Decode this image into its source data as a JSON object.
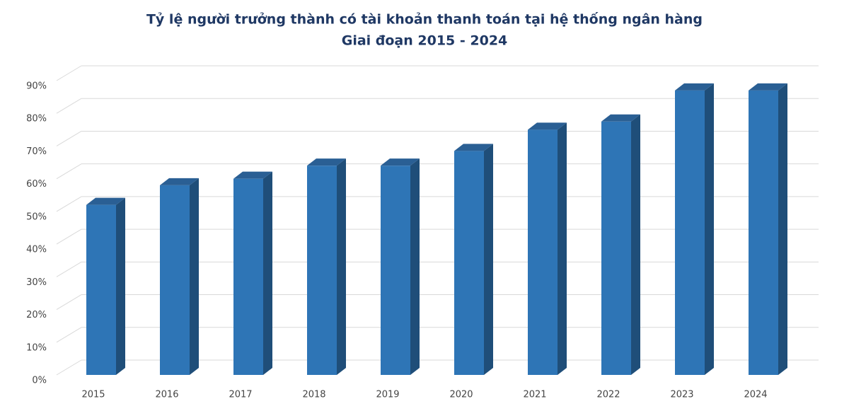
{
  "chart_data": {
    "type": "bar3d",
    "title": "Tỷ lệ người trưởng thành có tài khoản thanh toán tại hệ thống ngân hàng",
    "subtitle": "Giai đoạn 2015 - 2024",
    "categories": [
      "2015",
      "2016",
      "2017",
      "2018",
      "2019",
      "2020",
      "2021",
      "2022",
      "2023",
      "2024"
    ],
    "values": [
      52,
      58,
      60,
      64,
      64,
      68.5,
      75,
      77.5,
      87,
      87
    ],
    "color": "#2e75b6",
    "ylim": [
      0,
      90
    ],
    "yticks": [
      {
        "value": 0,
        "label": "0%"
      },
      {
        "value": 10,
        "label": "10%"
      },
      {
        "value": 20,
        "label": "20%"
      },
      {
        "value": 30,
        "label": "30%"
      },
      {
        "value": 40,
        "label": "40%"
      },
      {
        "value": 50,
        "label": "50%"
      },
      {
        "value": 60,
        "label": "60%"
      },
      {
        "value": 70,
        "label": "70%"
      },
      {
        "value": 80,
        "label": "80%"
      },
      {
        "value": 90,
        "label": "90%"
      }
    ],
    "grid": true
  }
}
